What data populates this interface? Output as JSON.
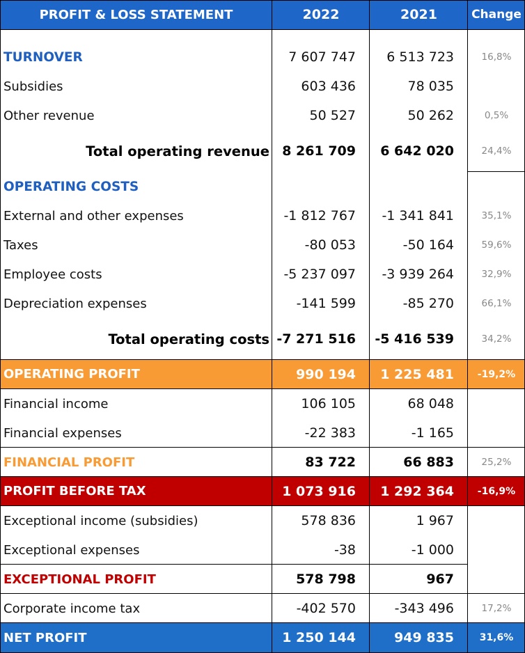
{
  "header": {
    "title": "PROFIT & LOSS STATEMENT",
    "col_2022": "2022",
    "col_2021": "2021",
    "col_change": "Change"
  },
  "rows": [
    {
      "label": "TURNOVER",
      "v2022": "7 607 747",
      "v2021": "6 513 723",
      "change": "16,8%"
    },
    {
      "label": "Subsidies",
      "v2022": "603 436",
      "v2021": "78 035",
      "change": ""
    },
    {
      "label": "Other revenue",
      "v2022": "50 527",
      "v2021": "50 262",
      "change": "0,5%"
    },
    {
      "label": "Total operating revenue",
      "v2022": "8 261 709",
      "v2021": "6 642 020",
      "change": "24,4%"
    },
    {
      "label": "OPERATING COSTS",
      "v2022": "",
      "v2021": "",
      "change": ""
    },
    {
      "label": "External and other expenses",
      "v2022": "-1 812 767",
      "v2021": "-1 341 841",
      "change": "35,1%"
    },
    {
      "label": "Taxes",
      "v2022": "-80 053",
      "v2021": "-50 164",
      "change": "59,6%"
    },
    {
      "label": "Employee costs",
      "v2022": "-5 237 097",
      "v2021": "-3 939 264",
      "change": "32,9%"
    },
    {
      "label": "Depreciation expenses",
      "v2022": "-141 599",
      "v2021": "-85 270",
      "change": "66,1%"
    },
    {
      "label": "Total operating costs",
      "v2022": "-7 271 516",
      "v2021": "-5 416 539",
      "change": "34,2%"
    },
    {
      "label": "OPERATING PROFIT",
      "v2022": "990 194",
      "v2021": "1 225 481",
      "change": "-19,2%"
    },
    {
      "label": "Financial income",
      "v2022": "106 105",
      "v2021": "68 048",
      "change": ""
    },
    {
      "label": "Financial expenses",
      "v2022": "-22 383",
      "v2021": "-1 165",
      "change": ""
    },
    {
      "label": "FINANCIAL PROFIT",
      "v2022": "83 722",
      "v2021": "66 883",
      "change": "25,2%"
    },
    {
      "label": "PROFIT BEFORE TAX",
      "v2022": "1 073 916",
      "v2021": "1 292 364",
      "change": "-16,9%"
    },
    {
      "label": "Exceptional income (subsidies)",
      "v2022": "578 836",
      "v2021": "1 967",
      "change": ""
    },
    {
      "label": "Exceptional expenses",
      "v2022": "-38",
      "v2021": "-1 000",
      "change": ""
    },
    {
      "label": "EXCEPTIONAL PROFIT",
      "v2022": "578 798",
      "v2021": "967",
      "change": ""
    },
    {
      "label": "Corporate income tax",
      "v2022": "-402 570",
      "v2021": "-343 496",
      "change": "17,2%"
    },
    {
      "label": "NET PROFIT",
      "v2022": "1 250 144",
      "v2021": "949 835",
      "change": "31,6%"
    }
  ],
  "colors": {
    "header_blue": "#1f66c9",
    "section_blue": "#1f5fbf",
    "operating_orange": "#f99b35",
    "pbt_red": "#c00000",
    "net_blue": "#1f6fc9"
  }
}
